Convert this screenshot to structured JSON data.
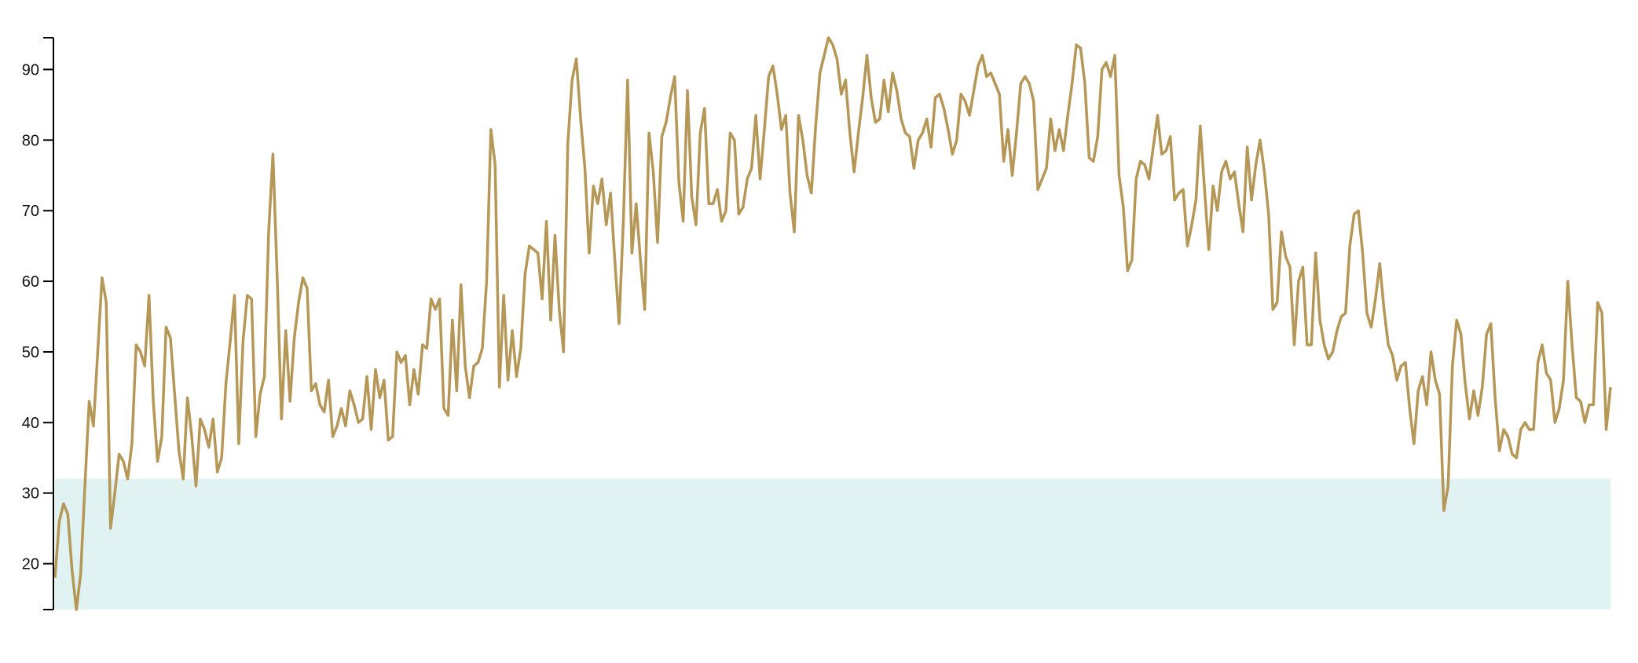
{
  "chart_data": {
    "type": "line",
    "title": "",
    "xlabel": "",
    "ylabel": "",
    "ylim": [
      13.5,
      94.5
    ],
    "yticks": [
      20,
      30,
      40,
      50,
      60,
      70,
      80,
      90
    ],
    "xaxis_visible": false,
    "grid": false,
    "legend": "none",
    "band": {
      "y0": 13.5,
      "y1": 32,
      "color": "#e0f3f2"
    },
    "series": [
      {
        "color": "#b59757",
        "values": [
          18,
          26,
          28.5,
          27,
          19,
          13.5,
          18.5,
          31,
          43,
          39.5,
          50,
          60.5,
          57,
          25,
          30,
          35.5,
          34.5,
          32,
          37,
          51,
          50,
          48,
          58,
          43,
          34.5,
          38,
          53.5,
          52,
          44,
          36,
          32,
          43.5,
          38,
          31,
          40.5,
          39,
          36.5,
          40.5,
          33,
          35,
          45.5,
          51.5,
          58,
          37,
          51.5,
          58,
          57.5,
          38,
          44,
          46.5,
          67,
          78,
          60.5,
          40.5,
          53,
          43,
          52,
          57,
          60.5,
          59,
          44.5,
          45.5,
          42.5,
          41.5,
          46,
          38,
          39.5,
          42,
          39.5,
          44.5,
          42.5,
          40,
          40.5,
          46.5,
          39,
          47.5,
          43.5,
          46,
          37.5,
          38,
          50,
          48.5,
          49.5,
          42.5,
          47.5,
          44,
          51,
          50.5,
          57.5,
          56,
          57.5,
          42,
          41,
          54.5,
          44.5,
          59.5,
          48,
          43.5,
          48,
          48.5,
          50.5,
          60,
          81.5,
          76.5,
          45,
          58,
          46,
          53,
          46.5,
          50.5,
          61,
          65,
          64.5,
          64,
          57.5,
          68.5,
          54.5,
          66.5,
          56,
          50,
          79.5,
          88.5,
          91.5,
          83,
          76,
          64,
          73.5,
          71,
          74.5,
          68,
          72.5,
          63,
          54,
          68.5,
          88.5,
          64,
          71,
          63,
          56,
          81,
          75.5,
          65.5,
          80.5,
          82.5,
          86,
          89,
          74,
          68.5,
          87,
          72,
          68,
          81,
          84.5,
          71,
          71,
          73,
          68.5,
          70,
          81,
          80,
          69.5,
          70.5,
          74.5,
          76,
          83.5,
          74.5,
          81.5,
          89,
          90.5,
          86.5,
          81.5,
          83.5,
          72.5,
          67,
          83.5,
          80,
          75,
          72.5,
          82,
          89.5,
          92,
          94.5,
          93.5,
          91.5,
          86.5,
          88.5,
          81,
          75.5,
          81,
          86,
          92,
          86,
          82.5,
          83,
          88.5,
          84,
          89.5,
          87,
          83,
          81,
          80.5,
          76,
          80,
          81,
          83,
          79,
          86,
          86.5,
          84.5,
          81.5,
          78,
          80,
          86.5,
          85.5,
          83.5,
          87,
          90.5,
          92,
          89,
          89.5,
          88,
          86.5,
          77,
          81.5,
          75,
          81,
          88,
          89,
          88,
          85.5,
          73,
          74.5,
          76,
          83,
          78.5,
          81.5,
          78.5,
          83.5,
          88,
          93.5,
          93,
          88,
          77.5,
          77,
          80.5,
          90,
          91,
          89,
          92,
          75,
          70.5,
          61.5,
          63,
          74.5,
          77,
          76.5,
          74.5,
          79,
          83.5,
          78,
          78.5,
          80.5,
          71.5,
          72.5,
          73,
          65,
          68,
          71.5,
          82,
          73,
          64.5,
          73.5,
          70,
          75.5,
          77,
          74.5,
          75.5,
          71,
          67,
          79,
          71.5,
          76.5,
          80,
          75.5,
          69.5,
          56,
          57,
          67,
          63.5,
          62,
          51,
          60,
          62,
          51,
          51,
          64,
          54.5,
          51,
          49,
          50,
          53,
          55,
          55.5,
          65,
          69.5,
          70,
          64,
          55.5,
          53.5,
          57.5,
          62.5,
          56,
          51,
          49.5,
          46,
          48,
          48.5,
          42,
          37,
          44.5,
          46.5,
          42.5,
          50,
          46,
          44,
          27.5,
          31,
          48,
          54.5,
          52.5,
          45.5,
          40.5,
          44.5,
          41,
          45,
          52.5,
          54,
          43.5,
          36,
          39,
          38,
          35.5,
          35,
          39,
          40,
          39,
          39,
          48.5,
          51,
          47,
          46,
          40,
          42,
          46,
          60,
          51,
          43.5,
          43,
          40,
          42.5,
          42.5,
          57,
          55.5,
          39,
          45
        ]
      }
    ]
  }
}
